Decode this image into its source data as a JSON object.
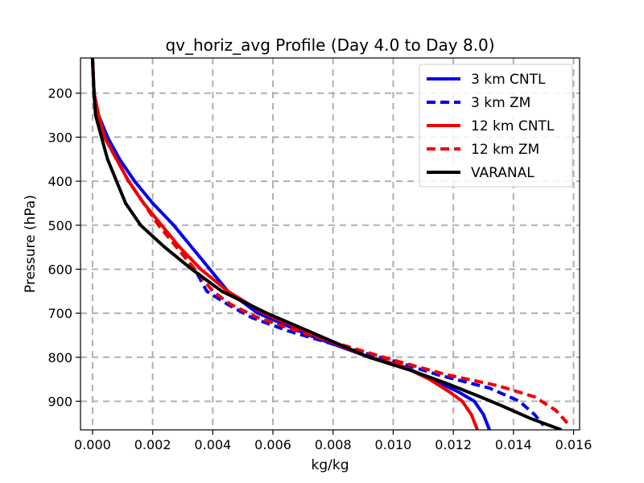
{
  "chart_data": {
    "type": "line",
    "title": "qv_horiz_avg Profile (Day 4.0 to Day 8.0)",
    "xlabel": "kg/kg",
    "ylabel": "Pressure (hPa)",
    "xlim": [
      -0.0004,
      0.0162
    ],
    "ylim": [
      965,
      120
    ],
    "y_inverted": true,
    "grid": true,
    "legend_position": "top-right",
    "xticks": [
      0.0,
      0.002,
      0.004,
      0.006,
      0.008,
      0.01,
      0.012,
      0.014,
      0.016
    ],
    "xtick_labels": [
      "0.000",
      "0.002",
      "0.004",
      "0.006",
      "0.008",
      "0.010",
      "0.012",
      "0.014",
      "0.016"
    ],
    "yticks": [
      200,
      300,
      400,
      500,
      600,
      700,
      800,
      900
    ],
    "ytick_labels": [
      "200",
      "300",
      "400",
      "500",
      "600",
      "700",
      "800",
      "900"
    ],
    "series": [
      {
        "name": "3 km CNTL",
        "color": "#0000ee",
        "dash": "solid",
        "points": [
          [
            0.0,
            120
          ],
          [
            5e-05,
            200
          ],
          [
            0.0002,
            250
          ],
          [
            0.0005,
            300
          ],
          [
            0.0009,
            350
          ],
          [
            0.0014,
            400
          ],
          [
            0.002,
            450
          ],
          [
            0.0027,
            500
          ],
          [
            0.0033,
            550
          ],
          [
            0.0039,
            600
          ],
          [
            0.0045,
            650
          ],
          [
            0.0055,
            700
          ],
          [
            0.0072,
            750
          ],
          [
            0.0092,
            800
          ],
          [
            0.0103,
            820
          ],
          [
            0.0113,
            850
          ],
          [
            0.0122,
            880
          ],
          [
            0.0127,
            900
          ],
          [
            0.013,
            930
          ],
          [
            0.0132,
            965
          ]
        ]
      },
      {
        "name": "3 km ZM",
        "color": "#0000ee",
        "dash": "dashed",
        "points": [
          [
            0.0,
            120
          ],
          [
            5e-05,
            200
          ],
          [
            0.0002,
            250
          ],
          [
            0.0004,
            300
          ],
          [
            0.0008,
            350
          ],
          [
            0.0012,
            400
          ],
          [
            0.0017,
            450
          ],
          [
            0.0022,
            500
          ],
          [
            0.0028,
            550
          ],
          [
            0.0034,
            600
          ],
          [
            0.0038,
            650
          ],
          [
            0.0045,
            680
          ],
          [
            0.0053,
            710
          ],
          [
            0.0065,
            740
          ],
          [
            0.0085,
            780
          ],
          [
            0.0101,
            810
          ],
          [
            0.0115,
            840
          ],
          [
            0.0132,
            870
          ],
          [
            0.0142,
            900
          ],
          [
            0.0147,
            930
          ],
          [
            0.015,
            955
          ]
        ]
      },
      {
        "name": "12 km CNTL",
        "color": "#ee0000",
        "dash": "solid",
        "points": [
          [
            0.0,
            120
          ],
          [
            5e-05,
            200
          ],
          [
            0.0002,
            250
          ],
          [
            0.0004,
            300
          ],
          [
            0.0008,
            350
          ],
          [
            0.0012,
            400
          ],
          [
            0.0017,
            450
          ],
          [
            0.0023,
            500
          ],
          [
            0.0029,
            550
          ],
          [
            0.0036,
            600
          ],
          [
            0.0045,
            650
          ],
          [
            0.0057,
            700
          ],
          [
            0.0074,
            750
          ],
          [
            0.0092,
            800
          ],
          [
            0.0103,
            820
          ],
          [
            0.0112,
            850
          ],
          [
            0.0119,
            880
          ],
          [
            0.0123,
            900
          ],
          [
            0.0126,
            930
          ],
          [
            0.0128,
            965
          ]
        ]
      },
      {
        "name": "12 km ZM",
        "color": "#ee0000",
        "dash": "dashed",
        "points": [
          [
            0.0,
            120
          ],
          [
            5e-05,
            200
          ],
          [
            0.0002,
            250
          ],
          [
            0.0004,
            300
          ],
          [
            0.0008,
            350
          ],
          [
            0.0012,
            400
          ],
          [
            0.0017,
            450
          ],
          [
            0.0022,
            500
          ],
          [
            0.0028,
            550
          ],
          [
            0.0034,
            600
          ],
          [
            0.004,
            650
          ],
          [
            0.0046,
            680
          ],
          [
            0.0055,
            710
          ],
          [
            0.0068,
            740
          ],
          [
            0.0087,
            780
          ],
          [
            0.0102,
            810
          ],
          [
            0.0118,
            840
          ],
          [
            0.0135,
            865
          ],
          [
            0.0147,
            890
          ],
          [
            0.0154,
            920
          ],
          [
            0.0158,
            950
          ]
        ]
      },
      {
        "name": "VARANAL",
        "color": "#000000",
        "dash": "solid",
        "points": [
          [
            0.0,
            120
          ],
          [
            5e-05,
            200
          ],
          [
            0.0001,
            250
          ],
          [
            0.0003,
            300
          ],
          [
            0.0005,
            350
          ],
          [
            0.0008,
            400
          ],
          [
            0.0011,
            450
          ],
          [
            0.0016,
            500
          ],
          [
            0.0024,
            550
          ],
          [
            0.0033,
            600
          ],
          [
            0.0043,
            650
          ],
          [
            0.0058,
            700
          ],
          [
            0.0075,
            750
          ],
          [
            0.0092,
            800
          ],
          [
            0.0106,
            830
          ],
          [
            0.0118,
            860
          ],
          [
            0.0129,
            890
          ],
          [
            0.0136,
            910
          ],
          [
            0.0146,
            940
          ],
          [
            0.0156,
            965
          ]
        ]
      }
    ]
  }
}
